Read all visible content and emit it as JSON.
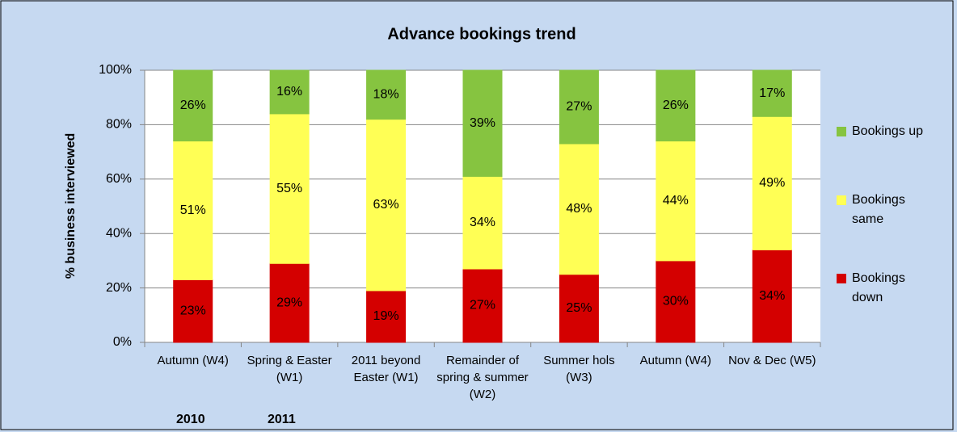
{
  "chart_data": {
    "type": "stacked_bar",
    "title": "Advance bookings trend",
    "ylabel": "% business interviewed",
    "categories": [
      "Autumn (W4)",
      "Spring & Easter (W1)",
      "2011 beyond Easter (W1)",
      "Remainder of spring & summer (W2)",
      "Summer hols (W3)",
      "Autumn (W4)",
      "Nov & Dec (W5)"
    ],
    "series": [
      {
        "name": "Bookings down",
        "color": "#d40000",
        "values": [
          23,
          29,
          19,
          27,
          25,
          30,
          34
        ],
        "value_labels": [
          "23%",
          "29%",
          "19%",
          "27%",
          "25%",
          "30%",
          "34%"
        ]
      },
      {
        "name": "Bookings same",
        "color": "#ffff55",
        "values": [
          51,
          55,
          63,
          34,
          48,
          44,
          49
        ],
        "value_labels": [
          "51%",
          "55%",
          "63%",
          "34%",
          "48%",
          "44%",
          "49%"
        ]
      },
      {
        "name": "Bookings up",
        "color": "#86c440",
        "values": [
          26,
          16,
          18,
          39,
          27,
          26,
          17
        ],
        "value_labels": [
          "26%",
          "16%",
          "18%",
          "39%",
          "27%",
          "26%",
          "17%"
        ]
      }
    ],
    "ylim": [
      0,
      100
    ],
    "yticks": [
      {
        "value": 0,
        "label": "0%"
      },
      {
        "value": 20,
        "label": "20%"
      },
      {
        "value": 40,
        "label": "40%"
      },
      {
        "value": 60,
        "label": "60%"
      },
      {
        "value": 80,
        "label": "80%"
      },
      {
        "value": 100,
        "label": "100%"
      }
    ],
    "grid": true,
    "legend": "right",
    "annotations": [
      "2010",
      "2011"
    ]
  }
}
